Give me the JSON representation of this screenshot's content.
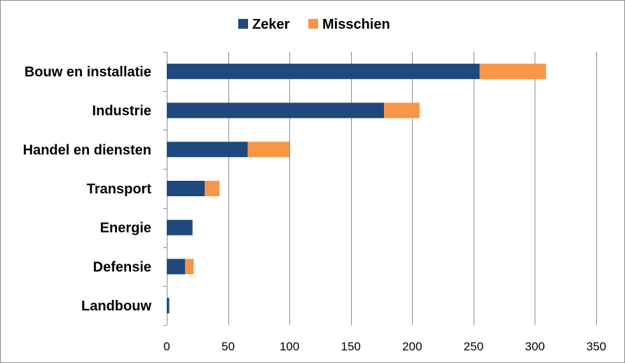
{
  "chart_data": {
    "type": "bar",
    "orientation": "horizontal",
    "stacked": true,
    "categories": [
      "Bouw en installatie",
      "Industrie",
      "Handel en diensten",
      "Transport",
      "Energie",
      "Defensie",
      "Landbouw"
    ],
    "series": [
      {
        "name": "Zeker",
        "color": "#1f497d",
        "values": [
          255,
          177,
          66,
          31,
          21,
          15,
          2
        ]
      },
      {
        "name": "Misschien",
        "color": "#f79646",
        "values": [
          54,
          29,
          34,
          12,
          0,
          7,
          0
        ]
      }
    ],
    "xlim": [
      0,
      350
    ],
    "xticks": [
      0,
      50,
      100,
      150,
      200,
      250,
      300,
      350
    ],
    "title": "",
    "xlabel": "",
    "ylabel": "",
    "grid": "vertical",
    "legend_position": "top"
  }
}
